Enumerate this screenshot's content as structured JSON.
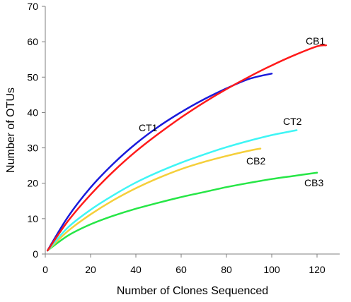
{
  "chart_data": {
    "type": "line",
    "title": "",
    "xlabel": "Number of Clones Sequenced",
    "ylabel": "Number of OTUs",
    "xlim": [
      0,
      130
    ],
    "ylim": [
      0,
      70
    ],
    "x_ticks": [
      0,
      20,
      40,
      60,
      80,
      100,
      120
    ],
    "y_ticks": [
      0,
      10,
      20,
      30,
      40,
      50,
      60,
      70
    ],
    "grid": false,
    "legend": "none",
    "series": [
      {
        "name": "CB1",
        "color": "#ff1a1a",
        "x": [
          1,
          10,
          20,
          30,
          40,
          50,
          60,
          70,
          80,
          90,
          100,
          110,
          120,
          124
        ],
        "y": [
          1,
          9.3,
          16.8,
          23.3,
          29,
          34,
          38.6,
          42.8,
          46.6,
          50.1,
          53.3,
          56.2,
          58.7,
          59
        ]
      },
      {
        "name": "CT1",
        "color": "#1a1adb",
        "x": [
          1,
          10,
          20,
          30,
          40,
          50,
          60,
          70,
          80,
          90,
          100
        ],
        "y": [
          1,
          10.5,
          18.8,
          25.5,
          31.2,
          36,
          40.1,
          43.7,
          46.8,
          49.5,
          51
        ]
      },
      {
        "name": "CT2",
        "color": "#3ff5f5",
        "x": [
          1,
          10,
          20,
          30,
          40,
          50,
          60,
          70,
          80,
          90,
          100,
          111
        ],
        "y": [
          1,
          7.5,
          12.5,
          16.6,
          20.2,
          23.2,
          25.8,
          28.1,
          30.2,
          32,
          33.6,
          35
        ]
      },
      {
        "name": "CB2",
        "color": "#f5cf3a",
        "x": [
          1,
          10,
          20,
          30,
          40,
          50,
          60,
          70,
          80,
          90,
          95
        ],
        "y": [
          1,
          6.5,
          11.2,
          15.2,
          18.6,
          21.5,
          24,
          26,
          27.7,
          29.2,
          29.8
        ]
      },
      {
        "name": "CB3",
        "color": "#26e646",
        "x": [
          1,
          10,
          20,
          30,
          40,
          50,
          60,
          70,
          80,
          90,
          100,
          110,
          120
        ],
        "y": [
          1,
          5.2,
          8.4,
          10.8,
          12.8,
          14.5,
          16.1,
          17.5,
          18.9,
          20.1,
          21.2,
          22.1,
          23
        ]
      }
    ]
  }
}
